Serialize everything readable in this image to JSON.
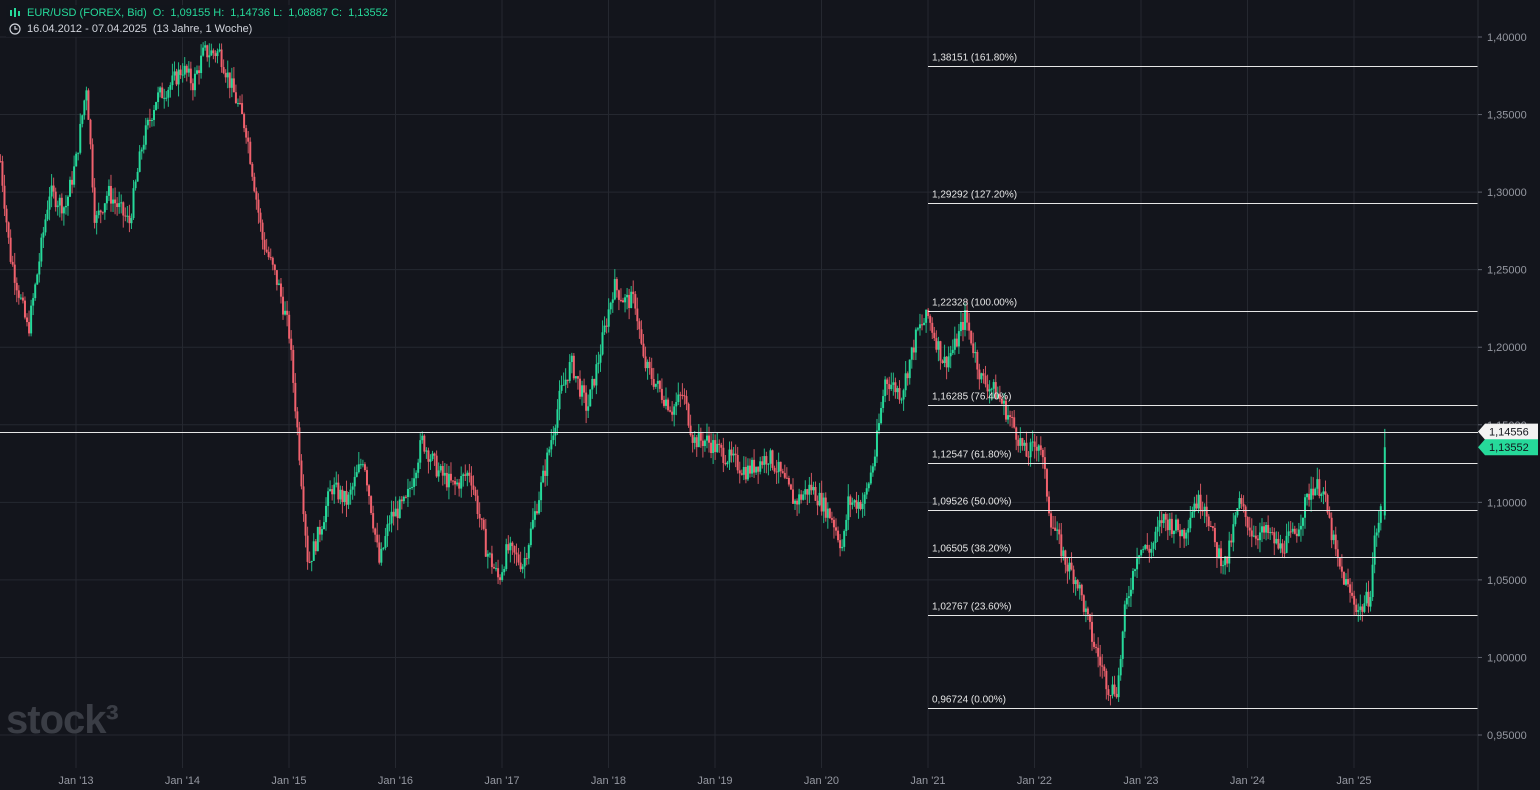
{
  "header": {
    "symbol": "EUR/USD (FOREX, Bid)",
    "open_label": "O:",
    "open": "1,09155",
    "high_label": "H:",
    "high": "1,14736",
    "low_label": "L:",
    "low": "1,08887",
    "close_label": "C:",
    "close": "1,13552",
    "date_range": "16.04.2012 - 07.04.2025",
    "period": "(13 Jahre, 1 Woche)"
  },
  "watermark": "stock³",
  "colors": {
    "background": "#13151c",
    "up": "#26d99a",
    "down": "#f0616d",
    "grid": "#252830",
    "fib": "#e6e6e6"
  },
  "chart_data": {
    "type": "candlestick",
    "yaxis_side": "right",
    "ylim": [
      0.94,
      1.415
    ],
    "y_ticks": [
      0.95,
      1.0,
      1.05,
      1.1,
      1.15,
      1.2,
      1.25,
      1.3,
      1.35,
      1.4
    ],
    "y_tick_labels": [
      "0,95000",
      "1,00000",
      "1,05000",
      "1,10000",
      "1,15000",
      "1,20000",
      "1,25000",
      "1,30000",
      "1,35000",
      "1,40000"
    ],
    "x_tick_labels": [
      "Jan '13",
      "Jan '14",
      "Jan '15",
      "Jan '16",
      "Jan '17",
      "Jan '18",
      "Jan '19",
      "Jan '20",
      "Jan '21",
      "Jan '22",
      "Jan '23",
      "Jan '24",
      "Jan '25"
    ],
    "x_tick_years": [
      2013,
      2014,
      2015,
      2016,
      2017,
      2018,
      2019,
      2020,
      2021,
      2022,
      2023,
      2024,
      2025
    ],
    "x_start": 2012.29,
    "x_end": 2026.32,
    "price_path": [
      [
        2012.29,
        1.32
      ],
      [
        2012.38,
        1.26
      ],
      [
        2012.55,
        1.21
      ],
      [
        2012.62,
        1.24
      ],
      [
        2012.75,
        1.3
      ],
      [
        2012.9,
        1.29
      ],
      [
        2013.0,
        1.32
      ],
      [
        2013.1,
        1.37
      ],
      [
        2013.18,
        1.28
      ],
      [
        2013.3,
        1.3
      ],
      [
        2013.5,
        1.28
      ],
      [
        2013.62,
        1.33
      ],
      [
        2013.75,
        1.36
      ],
      [
        2013.9,
        1.37
      ],
      [
        2014.0,
        1.38
      ],
      [
        2014.1,
        1.37
      ],
      [
        2014.2,
        1.39
      ],
      [
        2014.35,
        1.39
      ],
      [
        2014.5,
        1.36
      ],
      [
        2014.6,
        1.34
      ],
      [
        2014.75,
        1.27
      ],
      [
        2014.9,
        1.24
      ],
      [
        2015.0,
        1.21
      ],
      [
        2015.1,
        1.13
      ],
      [
        2015.18,
        1.06
      ],
      [
        2015.28,
        1.08
      ],
      [
        2015.4,
        1.11
      ],
      [
        2015.55,
        1.1
      ],
      [
        2015.7,
        1.13
      ],
      [
        2015.85,
        1.06
      ],
      [
        2015.95,
        1.09
      ],
      [
        2016.1,
        1.1
      ],
      [
        2016.25,
        1.14
      ],
      [
        2016.4,
        1.12
      ],
      [
        2016.55,
        1.11
      ],
      [
        2016.7,
        1.12
      ],
      [
        2016.85,
        1.07
      ],
      [
        2016.97,
        1.05
      ],
      [
        2017.05,
        1.07
      ],
      [
        2017.2,
        1.06
      ],
      [
        2017.3,
        1.09
      ],
      [
        2017.4,
        1.12
      ],
      [
        2017.55,
        1.17
      ],
      [
        2017.65,
        1.19
      ],
      [
        2017.8,
        1.16
      ],
      [
        2017.9,
        1.19
      ],
      [
        2018.05,
        1.24
      ],
      [
        2018.15,
        1.23
      ],
      [
        2018.25,
        1.23
      ],
      [
        2018.33,
        1.19
      ],
      [
        2018.5,
        1.17
      ],
      [
        2018.6,
        1.16
      ],
      [
        2018.7,
        1.17
      ],
      [
        2018.8,
        1.14
      ],
      [
        2018.92,
        1.14
      ],
      [
        2019.1,
        1.13
      ],
      [
        2019.3,
        1.12
      ],
      [
        2019.5,
        1.13
      ],
      [
        2019.6,
        1.12
      ],
      [
        2019.75,
        1.1
      ],
      [
        2019.9,
        1.11
      ],
      [
        2020.1,
        1.09
      ],
      [
        2020.2,
        1.07
      ],
      [
        2020.25,
        1.1
      ],
      [
        2020.4,
        1.1
      ],
      [
        2020.5,
        1.13
      ],
      [
        2020.6,
        1.18
      ],
      [
        2020.75,
        1.17
      ],
      [
        2020.9,
        1.21
      ],
      [
        2021.0,
        1.22
      ],
      [
        2021.15,
        1.19
      ],
      [
        2021.25,
        1.2
      ],
      [
        2021.35,
        1.22
      ],
      [
        2021.5,
        1.18
      ],
      [
        2021.65,
        1.17
      ],
      [
        2021.8,
        1.15
      ],
      [
        2021.92,
        1.13
      ],
      [
        2022.05,
        1.14
      ],
      [
        2022.15,
        1.09
      ],
      [
        2022.3,
        1.06
      ],
      [
        2022.4,
        1.05
      ],
      [
        2022.55,
        1.01
      ],
      [
        2022.7,
        0.98
      ],
      [
        2022.78,
        0.98
      ],
      [
        2022.85,
        1.03
      ],
      [
        2022.97,
        1.07
      ],
      [
        2023.1,
        1.07
      ],
      [
        2023.2,
        1.09
      ],
      [
        2023.4,
        1.08
      ],
      [
        2023.5,
        1.1
      ],
      [
        2023.6,
        1.1
      ],
      [
        2023.7,
        1.07
      ],
      [
        2023.8,
        1.06
      ],
      [
        2023.92,
        1.1
      ],
      [
        2024.05,
        1.08
      ],
      [
        2024.2,
        1.08
      ],
      [
        2024.3,
        1.07
      ],
      [
        2024.45,
        1.08
      ],
      [
        2024.6,
        1.11
      ],
      [
        2024.7,
        1.11
      ],
      [
        2024.85,
        1.06
      ],
      [
        2024.97,
        1.04
      ],
      [
        2025.05,
        1.03
      ],
      [
        2025.15,
        1.04
      ],
      [
        2025.2,
        1.08
      ],
      [
        2025.25,
        1.09
      ],
      [
        2025.27,
        1.14
      ]
    ],
    "fib_levels": [
      {
        "value": 1.38151,
        "label": "1,38151 (161.80%)"
      },
      {
        "value": 1.29292,
        "label": "1,29292 (127.20%)"
      },
      {
        "value": 1.22328,
        "label": "1,22328 (100.00%)"
      },
      {
        "value": 1.16285,
        "label": "1,16285 (76.40%)"
      },
      {
        "value": 1.12547,
        "label": "1,12547 (61.80%)"
      },
      {
        "value": 1.09526,
        "label": "1,09526 (50.00%)"
      },
      {
        "value": 1.06505,
        "label": "1,06505 (38.20%)"
      },
      {
        "value": 1.02767,
        "label": "1,02767 (23.60%)"
      },
      {
        "value": 0.96724,
        "label": "0,96724 (0.00%)"
      }
    ],
    "fib_start_year": 2021.0,
    "crosshair": {
      "value": 1.14556,
      "label": "1,14556"
    },
    "last_price": {
      "value": 1.13552,
      "label": "1,13552"
    }
  }
}
